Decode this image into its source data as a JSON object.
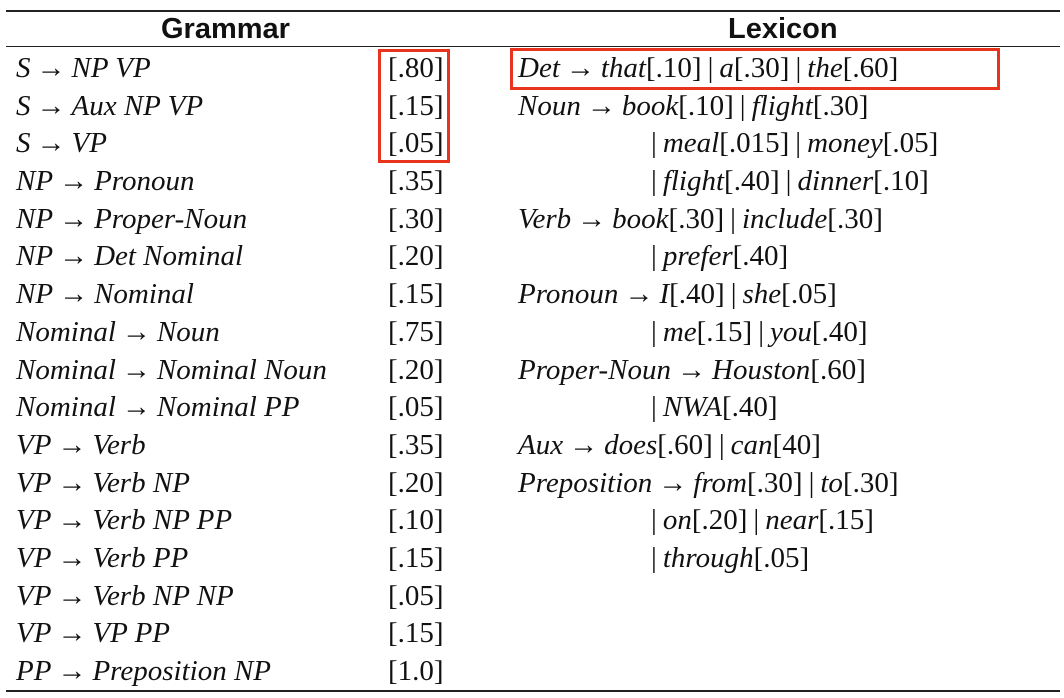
{
  "headers": {
    "grammar": "Grammar",
    "lexicon": "Lexicon"
  },
  "arrow": "→",
  "bar": "|",
  "grammar": [
    {
      "lhs": "S",
      "rhs": "NP VP",
      "prob": "[.80]"
    },
    {
      "lhs": "S",
      "rhs": "Aux NP VP",
      "prob": "[.15]"
    },
    {
      "lhs": "S",
      "rhs": "VP",
      "prob": "[.05]"
    },
    {
      "lhs": "NP",
      "rhs": "Pronoun",
      "prob": "[.35]"
    },
    {
      "lhs": "NP",
      "rhs": "Proper-Noun",
      "prob": "[.30]"
    },
    {
      "lhs": "NP",
      "rhs": "Det Nominal",
      "prob": "[.20]"
    },
    {
      "lhs": "NP",
      "rhs": "Nominal",
      "prob": "[.15]"
    },
    {
      "lhs": "Nominal",
      "rhs": "Noun",
      "prob": "[.75]"
    },
    {
      "lhs": "Nominal",
      "rhs": "Nominal Noun",
      "prob": "[.20]"
    },
    {
      "lhs": "Nominal",
      "rhs": "Nominal PP",
      "prob": "[.05]"
    },
    {
      "lhs": "VP",
      "rhs": "Verb",
      "prob": "[.35]"
    },
    {
      "lhs": "VP",
      "rhs": "Verb NP",
      "prob": "[.20]"
    },
    {
      "lhs": "VP",
      "rhs": "Verb NP PP",
      "prob": "[.10]"
    },
    {
      "lhs": "VP",
      "rhs": "Verb PP",
      "prob": "[.15]"
    },
    {
      "lhs": "VP",
      "rhs": "Verb NP NP",
      "prob": "[.05]"
    },
    {
      "lhs": "VP",
      "rhs": "VP PP",
      "prob": "[.15]"
    },
    {
      "lhs": "PP",
      "rhs": "Preposition NP",
      "prob": "[1.0]"
    }
  ],
  "lexicon": [
    {
      "lhs": "Det",
      "words": [
        {
          "w": "that",
          "p": "[.10]"
        },
        {
          "w": "a",
          "p": "[.30]"
        },
        {
          "w": "the",
          "p": "[.60]"
        }
      ]
    },
    {
      "lhs": "Noun",
      "words": [
        {
          "w": "book",
          "p": "[.10]"
        },
        {
          "w": "flight",
          "p": "[.30]"
        }
      ]
    },
    {
      "lhs": "",
      "words": [
        {
          "w": "meal",
          "p": "[.015]"
        },
        {
          "w": "money",
          "p": "[.05]"
        }
      ]
    },
    {
      "lhs": "",
      "words": [
        {
          "w": "flight",
          "p": "[.40]"
        },
        {
          "w": "dinner",
          "p": "[.10]"
        }
      ]
    },
    {
      "lhs": "Verb",
      "words": [
        {
          "w": "book",
          "p": "[.30]"
        },
        {
          "w": "include",
          "p": "[.30]"
        }
      ]
    },
    {
      "lhs": "",
      "words": [
        {
          "w": "prefer",
          "p": "[.40]"
        }
      ]
    },
    {
      "lhs": "Pronoun",
      "words": [
        {
          "w": "I",
          "p": "[.40]"
        },
        {
          "w": "she",
          "p": "[.05]"
        }
      ]
    },
    {
      "lhs": "",
      "words": [
        {
          "w": "me",
          "p": "[.15]"
        },
        {
          "w": "you",
          "p": "[.40]"
        }
      ]
    },
    {
      "lhs": "Proper-Noun",
      "words": [
        {
          "w": "Houston",
          "p": "[.60]"
        }
      ]
    },
    {
      "lhs": "",
      "words": [
        {
          "w": "NWA",
          "p": "[.40]"
        }
      ]
    },
    {
      "lhs": "Aux",
      "words": [
        {
          "w": "does",
          "p": "[.60]"
        },
        {
          "w": "can",
          "p": "[40]"
        }
      ]
    },
    {
      "lhs": "Preposition",
      "words": [
        {
          "w": "from",
          "p": "[.30]"
        },
        {
          "w": "to",
          "p": "[.30]"
        }
      ]
    },
    {
      "lhs": "",
      "words": [
        {
          "w": "on",
          "p": "[.20]"
        },
        {
          "w": "near",
          "p": "[.15]"
        }
      ]
    },
    {
      "lhs": "",
      "words": [
        {
          "w": "through",
          "p": "[.05]"
        }
      ]
    }
  ],
  "colors": {
    "highlight": "#e8341c",
    "text": "#111111",
    "rule_line": "#222222"
  }
}
